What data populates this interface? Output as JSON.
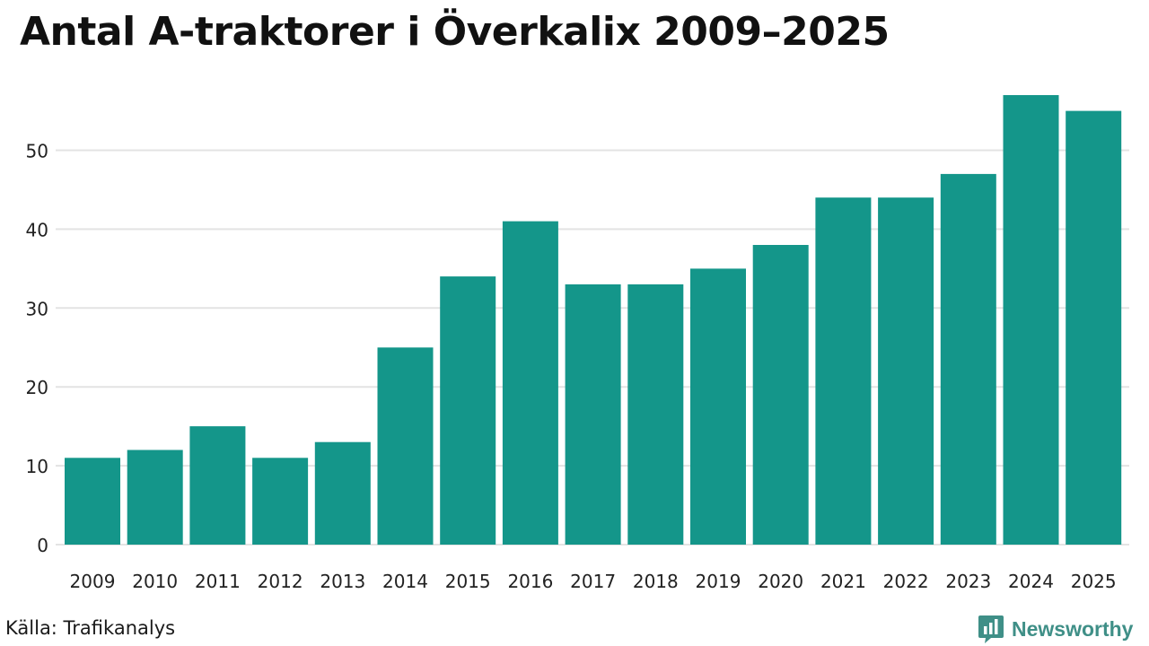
{
  "title": "Antal A-traktorer i Överkalix 2009–2025",
  "source": "Källa: Trafikanalys",
  "brand": {
    "name": "Newsworthy",
    "icon": "newsworthy-logo-icon",
    "color": "#3f8f87"
  },
  "colors": {
    "bar": "#14968a",
    "grid": "#e3e3e3"
  },
  "chart_data": {
    "type": "bar",
    "title": "Antal A-traktorer i Överkalix 2009–2025",
    "xlabel": "",
    "ylabel": "",
    "categories": [
      "2009",
      "2010",
      "2011",
      "2012",
      "2013",
      "2014",
      "2015",
      "2016",
      "2017",
      "2018",
      "2019",
      "2020",
      "2021",
      "2022",
      "2023",
      "2024",
      "2025"
    ],
    "values": [
      11,
      12,
      15,
      11,
      13,
      25,
      34,
      41,
      33,
      33,
      35,
      38,
      44,
      44,
      47,
      57,
      55
    ],
    "ylim": [
      0,
      60
    ],
    "yticks": [
      0,
      10,
      20,
      30,
      40,
      50
    ],
    "grid": true,
    "legend": "none"
  }
}
